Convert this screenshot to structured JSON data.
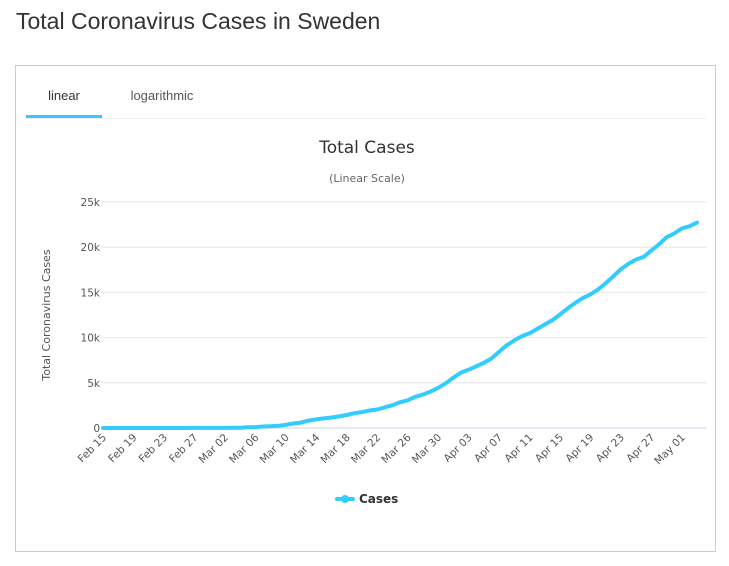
{
  "page": {
    "title": "Total Coronavirus Cases in Sweden"
  },
  "tabs": [
    {
      "label": "linear",
      "active": true
    },
    {
      "label": "logarithmic",
      "active": false
    }
  ],
  "colors": {
    "series": "#33ccff",
    "grid": "#e6e6e6",
    "tab_active": "#33ccff"
  },
  "chart_data": {
    "type": "line",
    "title": "Total Cases",
    "subtitle": "(Linear Scale)",
    "xlabel": "",
    "ylabel": "Total Coronavirus Cases",
    "ylim": [
      0,
      25000
    ],
    "y_ticks": [
      0,
      5000,
      10000,
      15000,
      20000,
      25000
    ],
    "y_tick_labels": [
      "0",
      "5k",
      "10k",
      "15k",
      "20k",
      "25k"
    ],
    "x_tick_labels": [
      "Feb 15",
      "Feb 19",
      "Feb 23",
      "Feb 27",
      "Mar 02",
      "Mar 06",
      "Mar 10",
      "Mar 14",
      "Mar 18",
      "Mar 22",
      "Mar 26",
      "Mar 30",
      "Apr 03",
      "Apr 07",
      "Apr 11",
      "Apr 15",
      "Apr 19",
      "Apr 23",
      "Apr 27",
      "May 01"
    ],
    "x_tick_index": [
      0,
      4,
      8,
      12,
      16,
      20,
      24,
      28,
      32,
      36,
      40,
      44,
      48,
      52,
      56,
      60,
      64,
      68,
      72,
      76
    ],
    "legend": "bottom-center",
    "series": [
      {
        "name": "Cases",
        "values": [
          1,
          1,
          1,
          1,
          1,
          1,
          1,
          1,
          1,
          1,
          1,
          2,
          7,
          7,
          12,
          14,
          15,
          21,
          35,
          94,
          101,
          161,
          203,
          248,
          355,
          500,
          599,
          814,
          961,
          1059,
          1167,
          1279,
          1439,
          1639,
          1763,
          1934,
          2046,
          2286,
          2526,
          2840,
          3069,
          3447,
          3700,
          4028,
          4435,
          4947,
          5568,
          6131,
          6443,
          6830,
          7206,
          7693,
          8419,
          9141,
          9685,
          10151,
          10483,
          10948,
          11445,
          11927,
          12540,
          13216,
          13822,
          14385,
          14777,
          15322,
          16004,
          16755,
          17567,
          18177,
          18640,
          18926,
          19621,
          20302,
          21092,
          21520,
          22082,
          22317,
          22721
        ]
      }
    ]
  }
}
